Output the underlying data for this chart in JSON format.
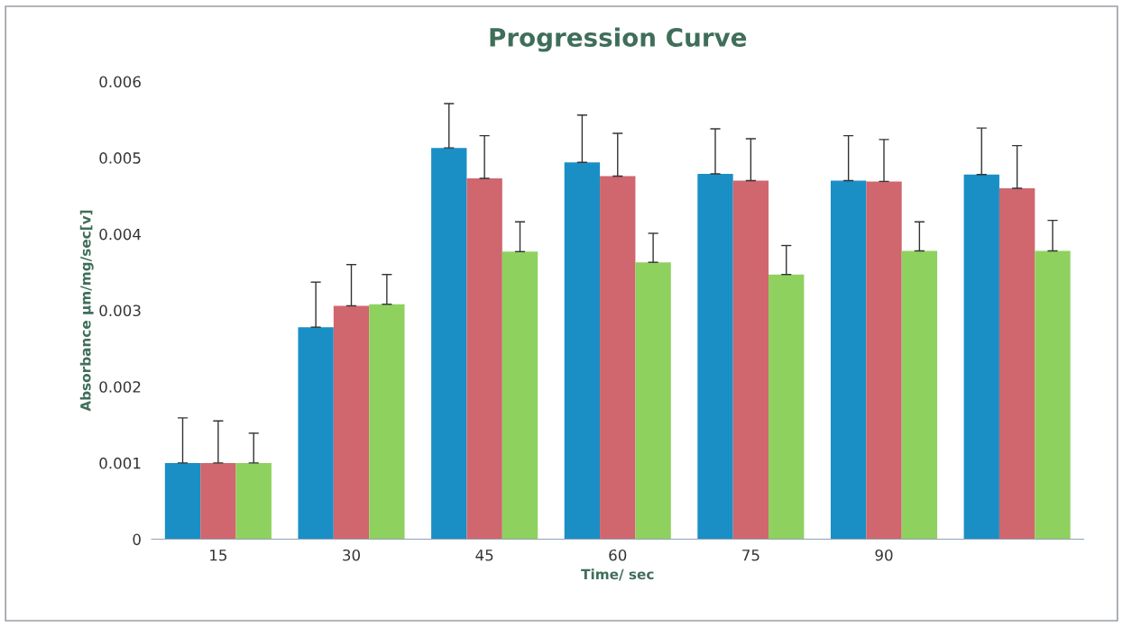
{
  "chart_data": {
    "type": "bar",
    "title": "Progression Curve",
    "xlabel": "Time/ sec",
    "ylabel": "Absorbance µm/mg/sec[v]",
    "categories": [
      "15",
      "30",
      "45",
      "60",
      "75",
      "90",
      null
    ],
    "series": [
      {
        "color": "#1a8fc6",
        "values": [
          0.001,
          0.00278,
          0.00513,
          0.00494,
          0.00479,
          0.0047,
          0.00478
        ],
        "errors": [
          [
            0.001,
            0.00159
          ],
          [
            0.00278,
            0.00337
          ],
          [
            0.00513,
            0.00571
          ],
          [
            0.00494,
            0.00556
          ],
          [
            0.00479,
            0.00538
          ],
          [
            0.0047,
            0.00529
          ],
          [
            0.00478,
            0.00539
          ]
        ]
      },
      {
        "color": "#d0666e",
        "values": [
          0.001,
          0.00306,
          0.00473,
          0.00476,
          0.0047,
          0.00469,
          0.0046
        ],
        "errors": [
          [
            0.001,
            0.00155
          ],
          [
            0.00306,
            0.0036
          ],
          [
            0.00473,
            0.00529
          ],
          [
            0.00476,
            0.00532
          ],
          [
            0.0047,
            0.00525
          ],
          [
            0.00469,
            0.00524
          ],
          [
            0.0046,
            0.00516
          ]
        ]
      },
      {
        "color": "#8fd15e",
        "values": [
          0.001,
          0.00308,
          0.00377,
          0.00363,
          0.00347,
          0.00378,
          0.00378
        ],
        "errors": [
          [
            0.001,
            0.00139
          ],
          [
            0.00308,
            0.00347
          ],
          [
            0.00377,
            0.00416
          ],
          [
            0.00363,
            0.00401
          ],
          [
            0.00347,
            0.00385
          ],
          [
            0.00378,
            0.00416
          ],
          [
            0.00378,
            0.00418
          ]
        ]
      }
    ],
    "ylim": [
      0,
      0.006
    ],
    "yticks": [
      0,
      0.001,
      0.002,
      0.003,
      0.004,
      0.005,
      0.006
    ],
    "grid": false,
    "legend": false
  }
}
